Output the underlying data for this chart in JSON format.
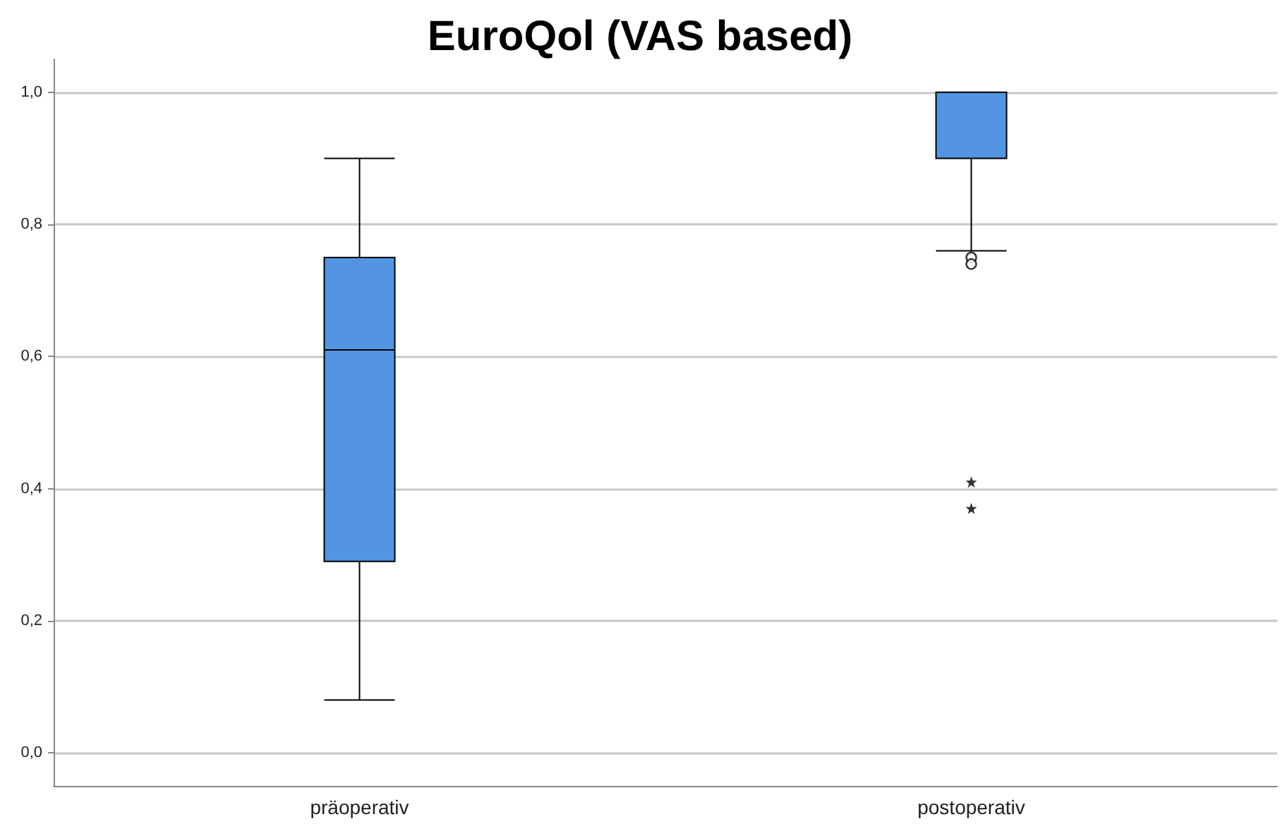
{
  "chart_data": {
    "type": "box",
    "title": "EuroQol (VAS based)",
    "categories": [
      "präoperativ",
      "postoperativ"
    ],
    "series": [
      {
        "color": "#5394e3",
        "boxes": [
          {
            "low": 0.08,
            "q1": 0.29,
            "median": 0.61,
            "q3": 0.75,
            "high": 0.9
          },
          {
            "low": 0.76,
            "q1": 0.9,
            "median": 1.0,
            "q3": 1.0,
            "high": 1.0,
            "outliers": [
              0.75,
              0.74,
              0.41,
              0.37
            ]
          }
        ]
      }
    ],
    "ylim": [
      -0.05,
      1.05
    ],
    "yticks": [
      {
        "value": 0,
        "label": "0,0"
      },
      {
        "value": 0.2,
        "label": "0,2"
      },
      {
        "value": 0.4,
        "label": "0,4"
      },
      {
        "value": 0.6,
        "label": "0,6"
      },
      {
        "value": 0.8,
        "label": "0,8"
      },
      {
        "value": 1,
        "label": "1,0"
      }
    ],
    "grid": "y"
  }
}
